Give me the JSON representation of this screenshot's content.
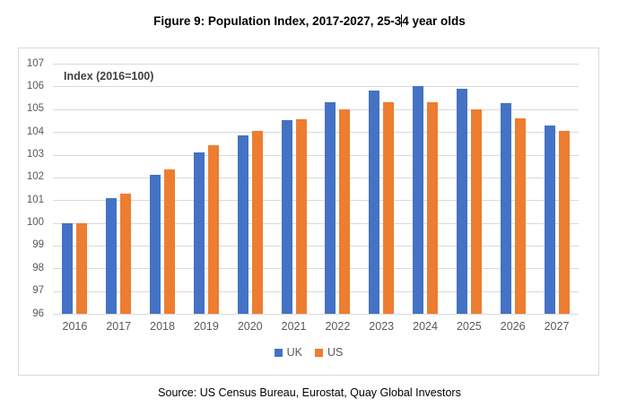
{
  "title": {
    "before_caret": "Figure 9: Population Index, 2017-2027, 25-3",
    "after_caret": "4 year olds"
  },
  "source": {
    "text": "Source: US Census Bureau, Eurostat, Quay Global Investors"
  },
  "chart_data": {
    "type": "bar",
    "title": "Figure 9: Population Index, 2017-2027, 25-34 year olds",
    "axis_note": "Index (2016=100)",
    "categories": [
      "2016",
      "2017",
      "2018",
      "2019",
      "2020",
      "2021",
      "2022",
      "2023",
      "2024",
      "2025",
      "2026",
      "2027"
    ],
    "series": [
      {
        "name": "UK",
        "color": "#4472C4",
        "values": [
          100,
          101.1,
          102.1,
          103.1,
          103.85,
          104.5,
          105.3,
          105.8,
          106.0,
          105.9,
          105.25,
          104.3
        ]
      },
      {
        "name": "US",
        "color": "#ED7D31",
        "values": [
          100,
          101.3,
          102.35,
          103.4,
          104.05,
          104.55,
          105.0,
          105.3,
          105.3,
          105.0,
          104.6,
          104.05
        ]
      }
    ],
    "xlabel": "",
    "ylabel": "",
    "ylim": [
      96,
      107
    ],
    "yticks": [
      96,
      97,
      98,
      99,
      100,
      101,
      102,
      103,
      104,
      105,
      106,
      107
    ],
    "grid": true,
    "legend_position": "bottom"
  },
  "style": {
    "gridline_color": "#D9D9D9",
    "border_color": "#D9D9D9",
    "axis_text_color": "#595959"
  }
}
